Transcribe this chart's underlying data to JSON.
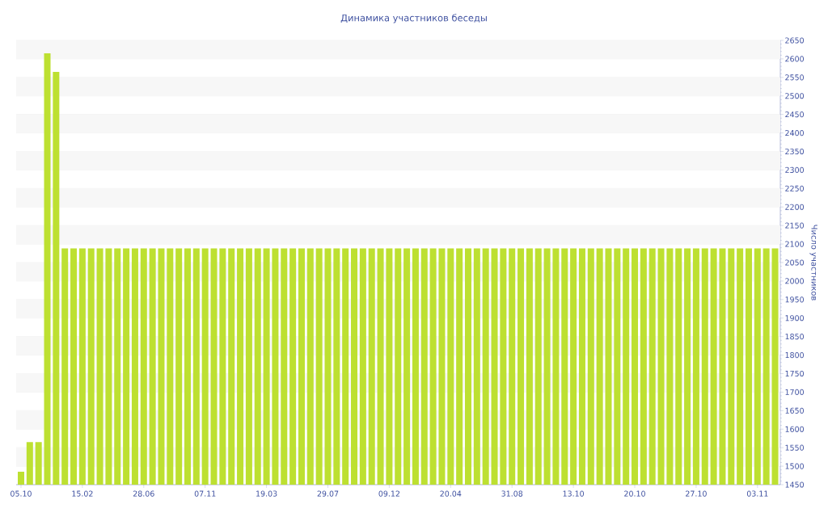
{
  "chart_data": {
    "type": "bar",
    "title": "Динамика участников беседы",
    "ylabel": "Число участников",
    "categories": [
      "05.10",
      null,
      null,
      null,
      null,
      null,
      null,
      "15.02",
      null,
      null,
      null,
      null,
      null,
      null,
      "28.06",
      null,
      null,
      null,
      null,
      null,
      null,
      "07.11",
      null,
      null,
      null,
      null,
      null,
      null,
      "19.03",
      null,
      null,
      null,
      null,
      null,
      null,
      "29.07",
      null,
      null,
      null,
      null,
      null,
      null,
      "09.12",
      null,
      null,
      null,
      null,
      null,
      null,
      "20.04",
      null,
      null,
      null,
      null,
      null,
      null,
      "31.08",
      null,
      null,
      null,
      null,
      null,
      null,
      "13.10",
      null,
      null,
      null,
      null,
      null,
      null,
      "20.10",
      null,
      null,
      null,
      null,
      null,
      null,
      "27.10",
      null,
      null,
      null,
      null,
      null,
      null,
      "03.11",
      null,
      null
    ],
    "values": [
      1485,
      1565,
      1565,
      2615,
      2565,
      2088,
      2088,
      2088,
      2088,
      2088,
      2088,
      2088,
      2088,
      2088,
      2088,
      2088,
      2088,
      2088,
      2088,
      2088,
      2088,
      2088,
      2088,
      2088,
      2088,
      2088,
      2088,
      2088,
      2088,
      2088,
      2088,
      2088,
      2088,
      2088,
      2088,
      2088,
      2088,
      2088,
      2088,
      2088,
      2088,
      2088,
      2088,
      2088,
      2088,
      2088,
      2088,
      2088,
      2088,
      2088,
      2088,
      2088,
      2088,
      2088,
      2088,
      2088,
      2088,
      2088,
      2088,
      2088,
      2088,
      2088,
      2088,
      2088,
      2088,
      2088,
      2088,
      2088,
      2088,
      2088,
      2088,
      2088,
      2088,
      2088,
      2088,
      2088,
      2088,
      2088,
      2088,
      2088,
      2088,
      2088,
      2088,
      2088,
      2088,
      2088,
      2088
    ],
    "color": "#bde031",
    "ylim": [
      1450,
      2650
    ],
    "yticks": [
      1450,
      1500,
      1550,
      1600,
      1650,
      1700,
      1750,
      1800,
      1850,
      1900,
      1950,
      2000,
      2050,
      2100,
      2150,
      2200,
      2250,
      2300,
      2350,
      2400,
      2450,
      2500,
      2550,
      2600,
      2650
    ],
    "grid": "y"
  }
}
